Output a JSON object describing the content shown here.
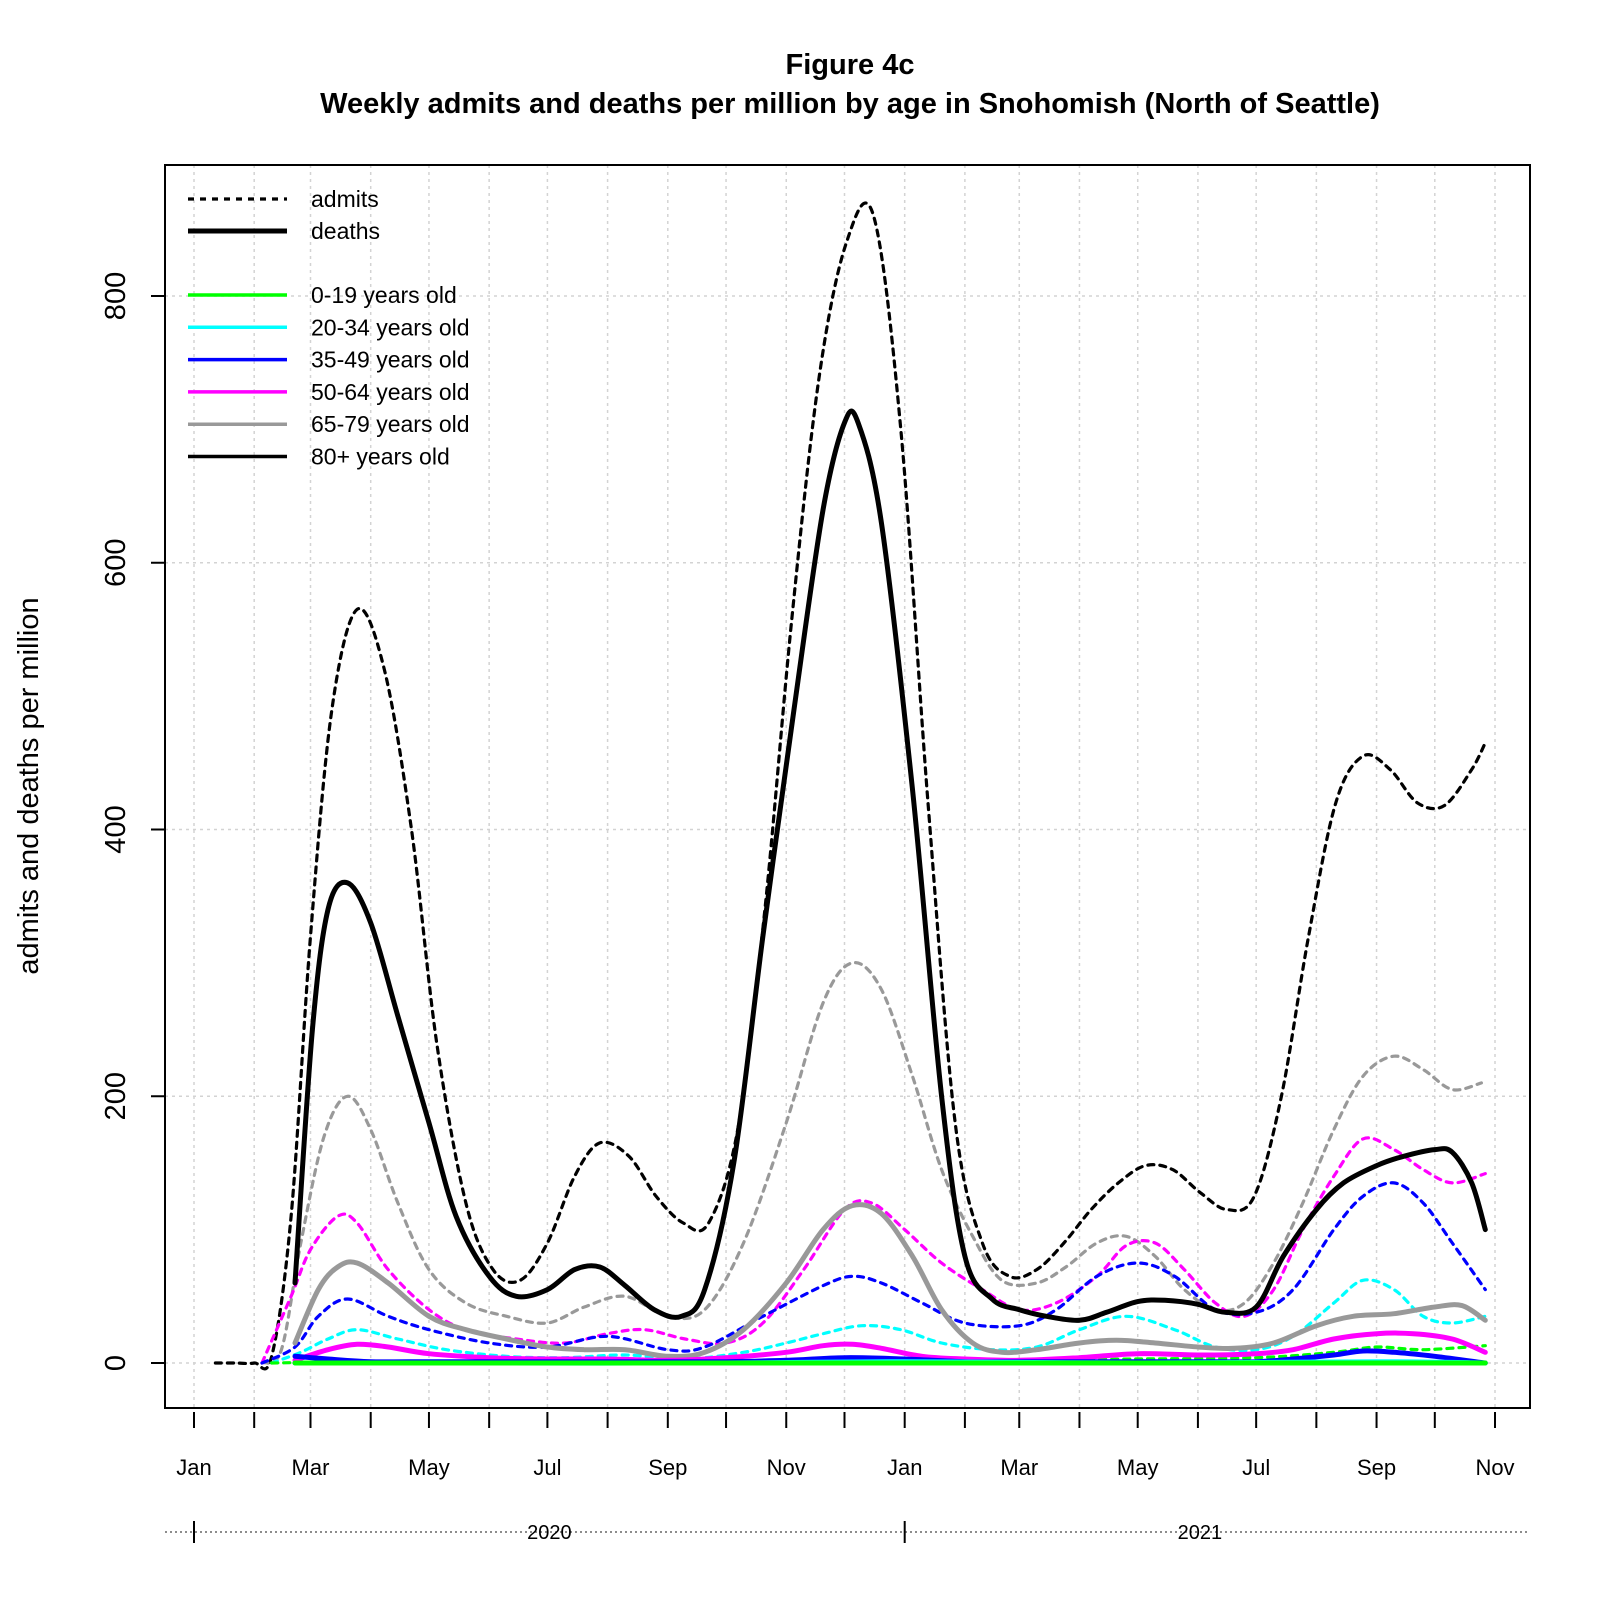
{
  "chart_data": {
    "type": "line",
    "title": "Figure 4c",
    "subtitle": "Weekly admits and deaths per million by age in Snohomish (North of Seattle)",
    "ylabel": "admits and deaths per million",
    "xlabel": "",
    "ylim": [
      -35,
      890
    ],
    "yticks": [
      0,
      200,
      400,
      600,
      800
    ],
    "grid": true,
    "legend_position": "top-left",
    "x_start": "2020-01-01",
    "x_end": "2021-11-01",
    "month_ticks": [
      "2020-01",
      "2020-02",
      "2020-03",
      "2020-04",
      "2020-05",
      "2020-06",
      "2020-07",
      "2020-08",
      "2020-09",
      "2020-10",
      "2020-11",
      "2020-12",
      "2021-01",
      "2021-02",
      "2021-03",
      "2021-04",
      "2021-05",
      "2021-06",
      "2021-07",
      "2021-08",
      "2021-09",
      "2021-10",
      "2021-11"
    ],
    "month_labels": [
      {
        "date": "2020-01",
        "label": "Jan"
      },
      {
        "date": "2020-03",
        "label": "Mar"
      },
      {
        "date": "2020-05",
        "label": "May"
      },
      {
        "date": "2020-07",
        "label": "Jul"
      },
      {
        "date": "2020-09",
        "label": "Sep"
      },
      {
        "date": "2020-11",
        "label": "Nov"
      },
      {
        "date": "2021-01",
        "label": "Jan"
      },
      {
        "date": "2021-03",
        "label": "Mar"
      },
      {
        "date": "2021-05",
        "label": "May"
      },
      {
        "date": "2021-07",
        "label": "Jul"
      },
      {
        "date": "2021-09",
        "label": "Sep"
      },
      {
        "date": "2021-11",
        "label": "Nov"
      }
    ],
    "year_labels": [
      {
        "label": "2020",
        "start": "2020-01",
        "end": "2021-01"
      },
      {
        "label": "2021",
        "start": "2021-01",
        "end": "2021-11"
      }
    ],
    "legend": {
      "styles": [
        {
          "label": "admits",
          "dash": "dotted"
        },
        {
          "label": "deaths",
          "dash": "solid"
        }
      ],
      "groups": [
        {
          "label": "0-19 years old",
          "color": "#00ff00"
        },
        {
          "label": "20-34 years old",
          "color": "#00ffff"
        },
        {
          "label": "35-49 years old",
          "color": "#0000ff"
        },
        {
          "label": "50-64 years old",
          "color": "#ff00ff"
        },
        {
          "label": "65-79 years old",
          "color": "#999999"
        },
        {
          "label": "80+ years old",
          "color": "#000000"
        }
      ]
    },
    "series": [
      {
        "group": "80+ years old",
        "kind": "admits",
        "color": "#000000",
        "x": [
          "2020-01-12",
          "2020-01-22",
          "2020-02-01",
          "2020-02-10",
          "2020-02-20",
          "2020-03-01",
          "2020-03-12",
          "2020-03-25",
          "2020-04-08",
          "2020-04-22",
          "2020-05-05",
          "2020-05-20",
          "2020-06-03",
          "2020-06-17",
          "2020-07-01",
          "2020-07-15",
          "2020-07-28",
          "2020-08-12",
          "2020-08-26",
          "2020-09-09",
          "2020-09-22",
          "2020-10-07",
          "2020-10-21",
          "2020-11-04",
          "2020-11-18",
          "2020-12-02",
          "2020-12-16",
          "2020-12-30",
          "2021-01-13",
          "2021-01-27",
          "2021-02-10",
          "2021-02-24",
          "2021-03-10",
          "2021-03-24",
          "2021-04-07",
          "2021-04-21",
          "2021-05-05",
          "2021-05-19",
          "2021-06-02",
          "2021-06-16",
          "2021-06-30",
          "2021-07-14",
          "2021-07-28",
          "2021-08-11",
          "2021-08-25",
          "2021-09-08",
          "2021-09-22",
          "2021-10-06",
          "2021-10-20",
          "2021-10-27"
        ],
        "y": [
          0,
          0,
          0,
          5,
          110,
          320,
          490,
          565,
          520,
          400,
          240,
          120,
          70,
          62,
          90,
          140,
          165,
          155,
          125,
          105,
          105,
          175,
          340,
          560,
          740,
          840,
          860,
          700,
          420,
          180,
          90,
          65,
          70,
          90,
          115,
          135,
          148,
          145,
          128,
          115,
          125,
          200,
          320,
          420,
          455,
          445,
          420,
          418,
          445,
          465
        ]
      },
      {
        "group": "80+ years old",
        "kind": "deaths",
        "color": "#000000",
        "x": [
          "2020-02-22",
          "2020-03-02",
          "2020-03-10",
          "2020-03-20",
          "2020-04-01",
          "2020-04-15",
          "2020-05-01",
          "2020-05-15",
          "2020-06-01",
          "2020-06-15",
          "2020-07-01",
          "2020-07-15",
          "2020-07-28",
          "2020-08-10",
          "2020-08-25",
          "2020-09-08",
          "2020-09-20",
          "2020-10-05",
          "2020-10-20",
          "2020-11-05",
          "2020-11-20",
          "2020-12-01",
          "2020-12-08",
          "2020-12-20",
          "2021-01-05",
          "2021-01-20",
          "2021-02-01",
          "2021-02-15",
          "2021-03-01",
          "2021-03-15",
          "2021-04-01",
          "2021-04-15",
          "2021-05-01",
          "2021-05-15",
          "2021-06-01",
          "2021-06-15",
          "2021-07-01",
          "2021-07-15",
          "2021-08-01",
          "2021-08-15",
          "2021-09-01",
          "2021-09-15",
          "2021-10-01",
          "2021-10-10",
          "2021-10-20",
          "2021-10-27"
        ],
        "y": [
          60,
          250,
          340,
          360,
          330,
          260,
          180,
          110,
          65,
          50,
          55,
          70,
          72,
          58,
          40,
          35,
          55,
          150,
          320,
          490,
          640,
          705,
          705,
          630,
          430,
          200,
          80,
          48,
          40,
          35,
          32,
          38,
          46,
          47,
          44,
          38,
          42,
          80,
          115,
          135,
          148,
          155,
          160,
          158,
          135,
          100
        ]
      },
      {
        "group": "65-79 years old",
        "kind": "admits",
        "color": "#999999",
        "x": [
          "2020-02-05",
          "2020-02-15",
          "2020-02-25",
          "2020-03-08",
          "2020-03-20",
          "2020-04-01",
          "2020-04-15",
          "2020-05-01",
          "2020-05-20",
          "2020-06-10",
          "2020-07-01",
          "2020-07-20",
          "2020-08-10",
          "2020-09-01",
          "2020-09-20",
          "2020-10-10",
          "2020-11-01",
          "2020-11-20",
          "2020-12-05",
          "2020-12-20",
          "2021-01-05",
          "2021-01-20",
          "2021-02-05",
          "2021-02-20",
          "2021-03-10",
          "2021-03-25",
          "2021-04-10",
          "2021-04-25",
          "2021-05-10",
          "2021-05-25",
          "2021-06-10",
          "2021-06-25",
          "2021-07-10",
          "2021-07-25",
          "2021-08-10",
          "2021-08-25",
          "2021-09-10",
          "2021-09-25",
          "2021-10-10",
          "2021-10-25"
        ],
        "y": [
          0,
          10,
          90,
          170,
          200,
          175,
          120,
          70,
          45,
          35,
          30,
          42,
          50,
          35,
          40,
          90,
          180,
          270,
          300,
          280,
          215,
          145,
          95,
          62,
          60,
          72,
          90,
          95,
          80,
          55,
          40,
          45,
          75,
          120,
          175,
          215,
          230,
          220,
          205,
          210
        ]
      },
      {
        "group": "65-79 years old",
        "kind": "deaths",
        "color": "#999999",
        "x": [
          "2020-02-22",
          "2020-03-05",
          "2020-03-15",
          "2020-03-25",
          "2020-04-10",
          "2020-05-01",
          "2020-05-20",
          "2020-06-10",
          "2020-07-01",
          "2020-07-20",
          "2020-08-10",
          "2020-09-01",
          "2020-09-20",
          "2020-10-10",
          "2020-11-01",
          "2020-11-20",
          "2020-12-05",
          "2020-12-20",
          "2021-01-05",
          "2021-01-20",
          "2021-02-05",
          "2021-02-20",
          "2021-03-10",
          "2021-04-01",
          "2021-04-20",
          "2021-05-10",
          "2021-06-01",
          "2021-06-20",
          "2021-07-10",
          "2021-08-01",
          "2021-08-20",
          "2021-09-10",
          "2021-10-01",
          "2021-10-15",
          "2021-10-27"
        ],
        "y": [
          15,
          55,
          72,
          75,
          60,
          35,
          25,
          18,
          12,
          10,
          10,
          5,
          8,
          25,
          60,
          100,
          118,
          112,
          80,
          40,
          15,
          8,
          10,
          15,
          17,
          15,
          12,
          11,
          15,
          28,
          35,
          37,
          42,
          43,
          32
        ]
      },
      {
        "group": "50-64 years old",
        "kind": "admits",
        "color": "#ff00ff",
        "x": [
          "2020-02-05",
          "2020-02-20",
          "2020-03-01",
          "2020-03-15",
          "2020-03-25",
          "2020-04-10",
          "2020-05-01",
          "2020-05-20",
          "2020-06-15",
          "2020-07-10",
          "2020-08-01",
          "2020-08-20",
          "2020-09-10",
          "2020-10-01",
          "2020-10-20",
          "2020-11-10",
          "2020-12-01",
          "2020-12-15",
          "2021-01-01",
          "2021-01-20",
          "2021-02-10",
          "2021-03-01",
          "2021-03-20",
          "2021-04-10",
          "2021-04-25",
          "2021-05-10",
          "2021-05-25",
          "2021-06-10",
          "2021-06-25",
          "2021-07-10",
          "2021-07-25",
          "2021-08-10",
          "2021-08-25",
          "2021-09-10",
          "2021-09-25",
          "2021-10-10",
          "2021-10-27"
        ],
        "y": [
          0,
          50,
          85,
          110,
          105,
          70,
          40,
          25,
          18,
          15,
          22,
          25,
          18,
          15,
          30,
          70,
          115,
          120,
          100,
          75,
          55,
          40,
          45,
          65,
          88,
          90,
          70,
          45,
          35,
          55,
          100,
          140,
          168,
          160,
          145,
          135,
          142
        ]
      },
      {
        "group": "50-64 years old",
        "kind": "deaths",
        "color": "#ff00ff",
        "x": [
          "2020-02-22",
          "2020-03-10",
          "2020-03-25",
          "2020-04-10",
          "2020-05-01",
          "2020-06-01",
          "2020-07-01",
          "2020-08-01",
          "2020-09-01",
          "2020-10-01",
          "2020-11-01",
          "2020-11-20",
          "2020-12-05",
          "2020-12-20",
          "2021-01-10",
          "2021-02-01",
          "2021-03-01",
          "2021-04-01",
          "2021-05-01",
          "2021-06-01",
          "2021-07-01",
          "2021-07-20",
          "2021-08-10",
          "2021-09-01",
          "2021-09-20",
          "2021-10-10",
          "2021-10-27"
        ],
        "y": [
          2,
          10,
          14,
          12,
          7,
          4,
          3,
          3,
          2,
          4,
          8,
          13,
          14,
          11,
          5,
          3,
          2,
          4,
          7,
          6,
          7,
          10,
          18,
          22,
          22,
          18,
          8
        ]
      },
      {
        "group": "35-49 years old",
        "kind": "admits",
        "color": "#0000ff",
        "x": [
          "2020-02-05",
          "2020-02-22",
          "2020-03-05",
          "2020-03-20",
          "2020-04-10",
          "2020-05-01",
          "2020-06-01",
          "2020-07-01",
          "2020-08-01",
          "2020-09-01",
          "2020-09-20",
          "2020-10-20",
          "2020-11-20",
          "2020-12-05",
          "2020-12-20",
          "2021-01-10",
          "2021-02-01",
          "2021-03-01",
          "2021-03-20",
          "2021-04-10",
          "2021-05-01",
          "2021-05-20",
          "2021-06-10",
          "2021-07-01",
          "2021-07-20",
          "2021-08-10",
          "2021-08-25",
          "2021-09-10",
          "2021-09-25",
          "2021-10-10",
          "2021-10-27"
        ],
        "y": [
          0,
          12,
          35,
          48,
          35,
          25,
          15,
          12,
          20,
          10,
          12,
          35,
          58,
          65,
          60,
          45,
          30,
          28,
          40,
          65,
          75,
          65,
          40,
          38,
          55,
          100,
          125,
          135,
          120,
          90,
          55
        ]
      },
      {
        "group": "35-49 years old",
        "kind": "deaths",
        "color": "#0000ff",
        "x": [
          "2020-02-22",
          "2020-03-10",
          "2020-04-01",
          "2020-05-01",
          "2020-06-01",
          "2020-07-01",
          "2020-08-01",
          "2020-09-01",
          "2020-10-01",
          "2020-11-01",
          "2020-12-01",
          "2021-01-01",
          "2021-02-01",
          "2021-03-01",
          "2021-04-01",
          "2021-05-01",
          "2021-06-01",
          "2021-07-01",
          "2021-07-20",
          "2021-08-10",
          "2021-08-25",
          "2021-09-10",
          "2021-10-01",
          "2021-10-27"
        ],
        "y": [
          5,
          3,
          1,
          1,
          1,
          1,
          1,
          1,
          1,
          2,
          4,
          3,
          1,
          1,
          1,
          1,
          1,
          1,
          3,
          6,
          9,
          8,
          5,
          0
        ]
      },
      {
        "group": "20-34 years old",
        "kind": "admits",
        "color": "#00ffff",
        "x": [
          "2020-02-10",
          "2020-02-25",
          "2020-03-10",
          "2020-03-25",
          "2020-04-15",
          "2020-05-10",
          "2020-06-10",
          "2020-07-10",
          "2020-08-10",
          "2020-09-10",
          "2020-10-10",
          "2020-11-01",
          "2020-11-20",
          "2020-12-10",
          "2020-12-30",
          "2021-01-20",
          "2021-02-15",
          "2021-03-10",
          "2021-04-01",
          "2021-04-25",
          "2021-05-20",
          "2021-06-10",
          "2021-07-01",
          "2021-07-20",
          "2021-08-10",
          "2021-08-25",
          "2021-09-10",
          "2021-09-25",
          "2021-10-10",
          "2021-10-27"
        ],
        "y": [
          0,
          8,
          18,
          25,
          18,
          10,
          5,
          4,
          6,
          3,
          8,
          15,
          22,
          28,
          25,
          15,
          10,
          12,
          25,
          35,
          25,
          12,
          10,
          20,
          45,
          62,
          55,
          35,
          30,
          35
        ]
      },
      {
        "group": "20-34 years old",
        "kind": "deaths",
        "color": "#00ffff",
        "x": [
          "2020-02-22",
          "2020-06-01",
          "2020-10-01",
          "2021-01-01",
          "2021-05-01",
          "2021-09-01",
          "2021-10-27"
        ],
        "y": [
          0,
          0,
          0,
          1,
          0,
          1,
          0
        ]
      },
      {
        "group": "0-19 years old",
        "kind": "admits",
        "color": "#00ff00",
        "x": [
          "2020-02-10",
          "2020-04-01",
          "2020-07-01",
          "2020-10-01",
          "2020-12-01",
          "2021-01-15",
          "2021-03-01",
          "2021-05-01",
          "2021-07-01",
          "2021-08-10",
          "2021-09-01",
          "2021-09-25",
          "2021-10-27"
        ],
        "y": [
          0,
          1,
          1,
          1,
          2,
          3,
          2,
          3,
          4,
          8,
          12,
          10,
          13
        ]
      },
      {
        "group": "0-19 years old",
        "kind": "deaths",
        "color": "#00ff00",
        "x": [
          "2020-02-22",
          "2020-06-01",
          "2020-10-01",
          "2021-01-01",
          "2021-05-01",
          "2021-09-01",
          "2021-10-27"
        ],
        "y": [
          0,
          0,
          0,
          0,
          0,
          0,
          0
        ]
      }
    ]
  }
}
